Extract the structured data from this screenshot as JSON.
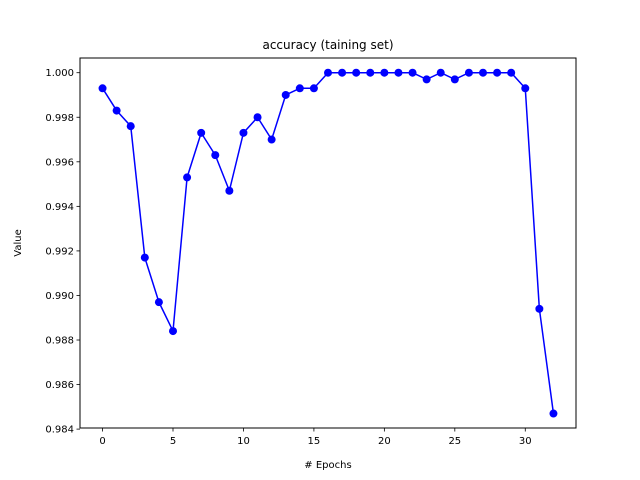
{
  "chart_data": {
    "type": "line",
    "title": "accuracy (taining set)",
    "xlabel": "# Epochs",
    "ylabel": "Value",
    "xlim": [
      -1.6,
      33.6
    ],
    "ylim": [
      0.98405,
      1.00066
    ],
    "xticks": [
      0,
      5,
      10,
      15,
      20,
      25,
      30
    ],
    "yticks": [
      0.984,
      0.986,
      0.988,
      0.99,
      0.992,
      0.994,
      0.996,
      0.998,
      1.0
    ],
    "ytick_labels": [
      "0.984",
      "0.986",
      "0.988",
      "0.990",
      "0.992",
      "0.994",
      "0.996",
      "0.998",
      "1.000"
    ],
    "grid": false,
    "series": [
      {
        "color": "#0000ff",
        "marker": "circle",
        "x": [
          0,
          1,
          2,
          3,
          4,
          5,
          6,
          7,
          8,
          9,
          10,
          11,
          12,
          13,
          14,
          15,
          16,
          17,
          18,
          19,
          20,
          21,
          22,
          23,
          24,
          25,
          26,
          27,
          28,
          29,
          30,
          31,
          32
        ],
        "y": [
          0.9993,
          0.9983,
          0.9976,
          0.9917,
          0.9897,
          0.9884,
          0.9953,
          0.9973,
          0.9963,
          0.9947,
          0.9973,
          0.998,
          0.997,
          0.999,
          0.9993,
          0.9993,
          1.0,
          1.0,
          1.0,
          1.0,
          1.0,
          1.0,
          1.0,
          0.9997,
          1.0,
          0.9997,
          1.0,
          1.0,
          1.0,
          1.0,
          0.9993,
          0.9894,
          0.9847
        ]
      }
    ]
  }
}
